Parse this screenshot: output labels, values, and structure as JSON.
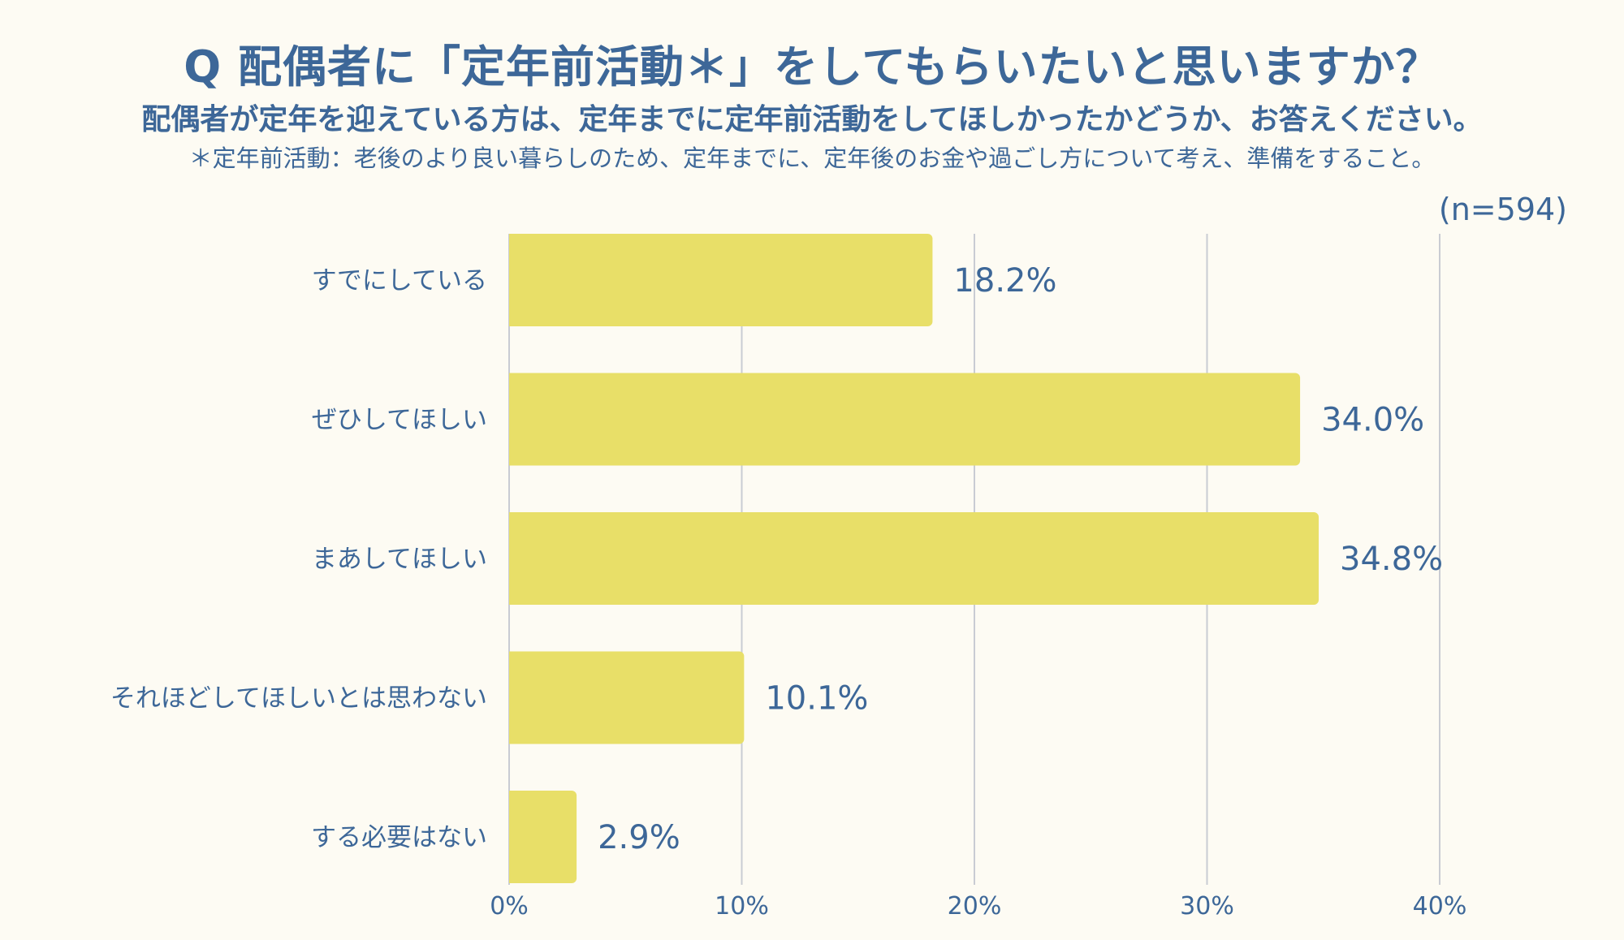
{
  "chart_data": {
    "type": "bar",
    "orientation": "horizontal",
    "title": "Q 配偶者に「定年前活動＊」をしてもらいたいと思いますか？",
    "subtitle": "配偶者が定年を迎えている方は、定年までに定年前活動をしてほしかったかどうか、お答えください。",
    "note": "＊定年前活動：老後のより良い暮らしのため、定年までに、定年後のお金や過ごし方について考え、準備をすること。",
    "sample_size": "(n=594)",
    "categories": [
      "すでにしている",
      "ぜひしてほしい",
      "まあしてほしい",
      "それほどしてほしいとは思わない",
      "する必要はない"
    ],
    "values": [
      18.2,
      34.0,
      34.8,
      10.1,
      2.9
    ],
    "value_labels": [
      "18.2%",
      "34.0%",
      "34.8%",
      "10.1%",
      "2.9%"
    ],
    "xlim": [
      0,
      40
    ],
    "xticks": [
      0,
      10,
      20,
      30,
      40
    ],
    "xtick_labels": [
      "0%",
      "10%",
      "20%",
      "30%",
      "40%"
    ],
    "grid": true,
    "xlabel": "",
    "ylabel": ""
  },
  "colors": {
    "bar": "#e8df68",
    "text": "#3d6798",
    "grid": "#c9ccd3",
    "background": "#fdfbf3"
  }
}
